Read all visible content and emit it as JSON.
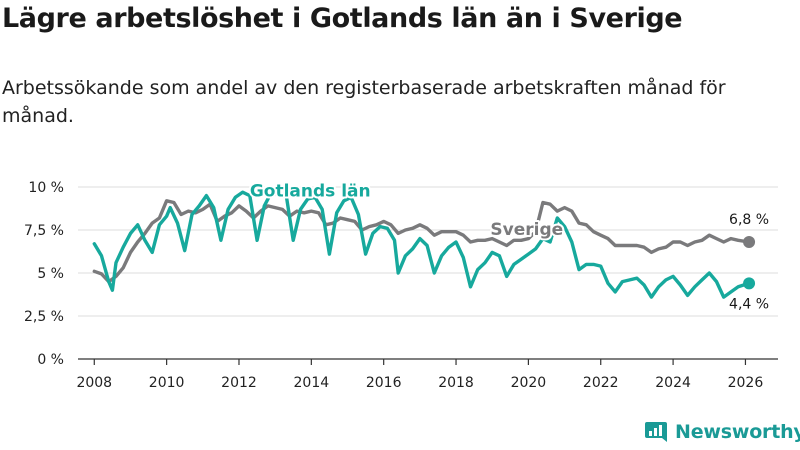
{
  "title": "Lägre arbetslöshet i Gotlands län än i Sverige",
  "subtitle": "Arbetssökande som andel av den registerbaserade arbetskraften månad för månad.",
  "logo_text": "Newsworthy",
  "colors": {
    "gotland": "#17a99d",
    "sverige": "#7a7a7c",
    "grid": "#dcdcdc",
    "axis": "#333333",
    "brand": "#1a9a96"
  },
  "chart_data": {
    "type": "line",
    "title": "Lägre arbetslöshet i Gotlands län än i Sverige",
    "xlabel": "",
    "ylabel": "",
    "xlim": [
      2007.55,
      2026.9
    ],
    "ylim": [
      0,
      10
    ],
    "yticks": [
      0,
      2.5,
      5,
      7.5,
      10
    ],
    "ytick_labels": [
      "0 %",
      "2,5 %",
      "5 %",
      "7,5 %",
      "10 %"
    ],
    "xticks": [
      2008,
      2010,
      2012,
      2014,
      2016,
      2018,
      2020,
      2022,
      2024,
      2026
    ],
    "xtick_labels": [
      "2008",
      "2010",
      "2012",
      "2014",
      "2016",
      "2018",
      "2020",
      "2022",
      "2024",
      "2026"
    ],
    "grid": true,
    "series": [
      {
        "name": "Sverige",
        "label": "Sverige",
        "end_label": "6,8 %",
        "points": [
          [
            2008.0,
            5.1
          ],
          [
            2008.2,
            4.95
          ],
          [
            2008.4,
            4.5
          ],
          [
            2008.6,
            4.8
          ],
          [
            2008.8,
            5.3
          ],
          [
            2009.0,
            6.2
          ],
          [
            2009.2,
            6.8
          ],
          [
            2009.4,
            7.3
          ],
          [
            2009.6,
            7.9
          ],
          [
            2009.8,
            8.2
          ],
          [
            2010.0,
            9.2
          ],
          [
            2010.2,
            9.1
          ],
          [
            2010.4,
            8.4
          ],
          [
            2010.6,
            8.6
          ],
          [
            2010.8,
            8.5
          ],
          [
            2011.0,
            8.7
          ],
          [
            2011.2,
            9.0
          ],
          [
            2011.4,
            8.0
          ],
          [
            2011.6,
            8.3
          ],
          [
            2011.8,
            8.5
          ],
          [
            2012.0,
            8.9
          ],
          [
            2012.2,
            8.6
          ],
          [
            2012.4,
            8.2
          ],
          [
            2012.6,
            8.6
          ],
          [
            2012.8,
            8.9
          ],
          [
            2013.0,
            8.8
          ],
          [
            2013.2,
            8.7
          ],
          [
            2013.4,
            8.3
          ],
          [
            2013.6,
            8.6
          ],
          [
            2013.8,
            8.5
          ],
          [
            2014.0,
            8.6
          ],
          [
            2014.2,
            8.5
          ],
          [
            2014.4,
            7.8
          ],
          [
            2014.6,
            7.9
          ],
          [
            2014.8,
            8.2
          ],
          [
            2015.0,
            8.1
          ],
          [
            2015.2,
            8.0
          ],
          [
            2015.4,
            7.5
          ],
          [
            2015.6,
            7.7
          ],
          [
            2015.8,
            7.8
          ],
          [
            2016.0,
            8.0
          ],
          [
            2016.2,
            7.8
          ],
          [
            2016.4,
            7.3
          ],
          [
            2016.6,
            7.5
          ],
          [
            2016.8,
            7.6
          ],
          [
            2017.0,
            7.8
          ],
          [
            2017.2,
            7.6
          ],
          [
            2017.4,
            7.2
          ],
          [
            2017.6,
            7.4
          ],
          [
            2017.8,
            7.4
          ],
          [
            2018.0,
            7.4
          ],
          [
            2018.2,
            7.2
          ],
          [
            2018.4,
            6.8
          ],
          [
            2018.6,
            6.9
          ],
          [
            2018.8,
            6.9
          ],
          [
            2019.0,
            7.0
          ],
          [
            2019.2,
            6.8
          ],
          [
            2019.4,
            6.6
          ],
          [
            2019.6,
            6.9
          ],
          [
            2019.8,
            6.9
          ],
          [
            2020.0,
            7.0
          ],
          [
            2020.2,
            7.4
          ],
          [
            2020.4,
            9.1
          ],
          [
            2020.6,
            9.0
          ],
          [
            2020.8,
            8.6
          ],
          [
            2021.0,
            8.8
          ],
          [
            2021.2,
            8.6
          ],
          [
            2021.4,
            7.9
          ],
          [
            2021.6,
            7.8
          ],
          [
            2021.8,
            7.4
          ],
          [
            2022.0,
            7.2
          ],
          [
            2022.2,
            7.0
          ],
          [
            2022.4,
            6.6
          ],
          [
            2022.6,
            6.6
          ],
          [
            2022.8,
            6.6
          ],
          [
            2023.0,
            6.6
          ],
          [
            2023.2,
            6.5
          ],
          [
            2023.4,
            6.2
          ],
          [
            2023.6,
            6.4
          ],
          [
            2023.8,
            6.5
          ],
          [
            2024.0,
            6.8
          ],
          [
            2024.2,
            6.8
          ],
          [
            2024.4,
            6.6
          ],
          [
            2024.6,
            6.8
          ],
          [
            2024.8,
            6.9
          ],
          [
            2025.0,
            7.2
          ],
          [
            2025.2,
            7.0
          ],
          [
            2025.4,
            6.8
          ],
          [
            2025.6,
            7.0
          ],
          [
            2025.8,
            6.9
          ],
          [
            2026.1,
            6.8
          ]
        ]
      },
      {
        "name": "Gotlands län",
        "label": "Gotlands län",
        "end_label": "4,4 %",
        "points": [
          [
            2008.0,
            6.7
          ],
          [
            2008.2,
            6.0
          ],
          [
            2008.4,
            4.5
          ],
          [
            2008.5,
            4.0
          ],
          [
            2008.6,
            5.6
          ],
          [
            2008.8,
            6.5
          ],
          [
            2009.0,
            7.3
          ],
          [
            2009.2,
            7.8
          ],
          [
            2009.4,
            6.9
          ],
          [
            2009.6,
            6.2
          ],
          [
            2009.8,
            7.8
          ],
          [
            2010.0,
            8.3
          ],
          [
            2010.1,
            8.8
          ],
          [
            2010.3,
            7.9
          ],
          [
            2010.5,
            6.3
          ],
          [
            2010.7,
            8.4
          ],
          [
            2010.9,
            8.9
          ],
          [
            2011.1,
            9.5
          ],
          [
            2011.3,
            8.8
          ],
          [
            2011.5,
            6.9
          ],
          [
            2011.7,
            8.7
          ],
          [
            2011.9,
            9.4
          ],
          [
            2012.1,
            9.7
          ],
          [
            2012.3,
            9.5
          ],
          [
            2012.5,
            6.9
          ],
          [
            2012.7,
            8.9
          ],
          [
            2012.9,
            9.7
          ],
          [
            2013.1,
            9.5
          ],
          [
            2013.3,
            9.6
          ],
          [
            2013.5,
            6.9
          ],
          [
            2013.7,
            8.7
          ],
          [
            2013.9,
            9.3
          ],
          [
            2014.1,
            9.4
          ],
          [
            2014.3,
            8.7
          ],
          [
            2014.5,
            6.1
          ],
          [
            2014.7,
            8.5
          ],
          [
            2014.9,
            9.2
          ],
          [
            2015.1,
            9.4
          ],
          [
            2015.3,
            8.4
          ],
          [
            2015.5,
            6.1
          ],
          [
            2015.7,
            7.3
          ],
          [
            2015.9,
            7.7
          ],
          [
            2016.1,
            7.6
          ],
          [
            2016.3,
            6.9
          ],
          [
            2016.4,
            5.0
          ],
          [
            2016.6,
            6.0
          ],
          [
            2016.8,
            6.4
          ],
          [
            2017.0,
            7.0
          ],
          [
            2017.2,
            6.6
          ],
          [
            2017.4,
            5.0
          ],
          [
            2017.6,
            6.0
          ],
          [
            2017.8,
            6.5
          ],
          [
            2018.0,
            6.8
          ],
          [
            2018.2,
            5.9
          ],
          [
            2018.4,
            4.2
          ],
          [
            2018.6,
            5.2
          ],
          [
            2018.8,
            5.6
          ],
          [
            2019.0,
            6.2
          ],
          [
            2019.2,
            6.0
          ],
          [
            2019.4,
            4.8
          ],
          [
            2019.6,
            5.5
          ],
          [
            2019.8,
            5.8
          ],
          [
            2020.0,
            6.1
          ],
          [
            2020.2,
            6.4
          ],
          [
            2020.4,
            7.0
          ],
          [
            2020.6,
            6.8
          ],
          [
            2020.8,
            8.2
          ],
          [
            2021.0,
            7.7
          ],
          [
            2021.2,
            6.8
          ],
          [
            2021.4,
            5.2
          ],
          [
            2021.6,
            5.5
          ],
          [
            2021.8,
            5.5
          ],
          [
            2022.0,
            5.4
          ],
          [
            2022.2,
            4.4
          ],
          [
            2022.4,
            3.9
          ],
          [
            2022.6,
            4.5
          ],
          [
            2022.8,
            4.6
          ],
          [
            2023.0,
            4.7
          ],
          [
            2023.2,
            4.3
          ],
          [
            2023.4,
            3.6
          ],
          [
            2023.6,
            4.2
          ],
          [
            2023.8,
            4.6
          ],
          [
            2024.0,
            4.8
          ],
          [
            2024.2,
            4.3
          ],
          [
            2024.4,
            3.7
          ],
          [
            2024.6,
            4.2
          ],
          [
            2024.8,
            4.6
          ],
          [
            2025.0,
            5.0
          ],
          [
            2025.2,
            4.5
          ],
          [
            2025.4,
            3.6
          ],
          [
            2025.6,
            3.9
          ],
          [
            2025.8,
            4.2
          ],
          [
            2026.1,
            4.4
          ]
        ]
      }
    ]
  }
}
